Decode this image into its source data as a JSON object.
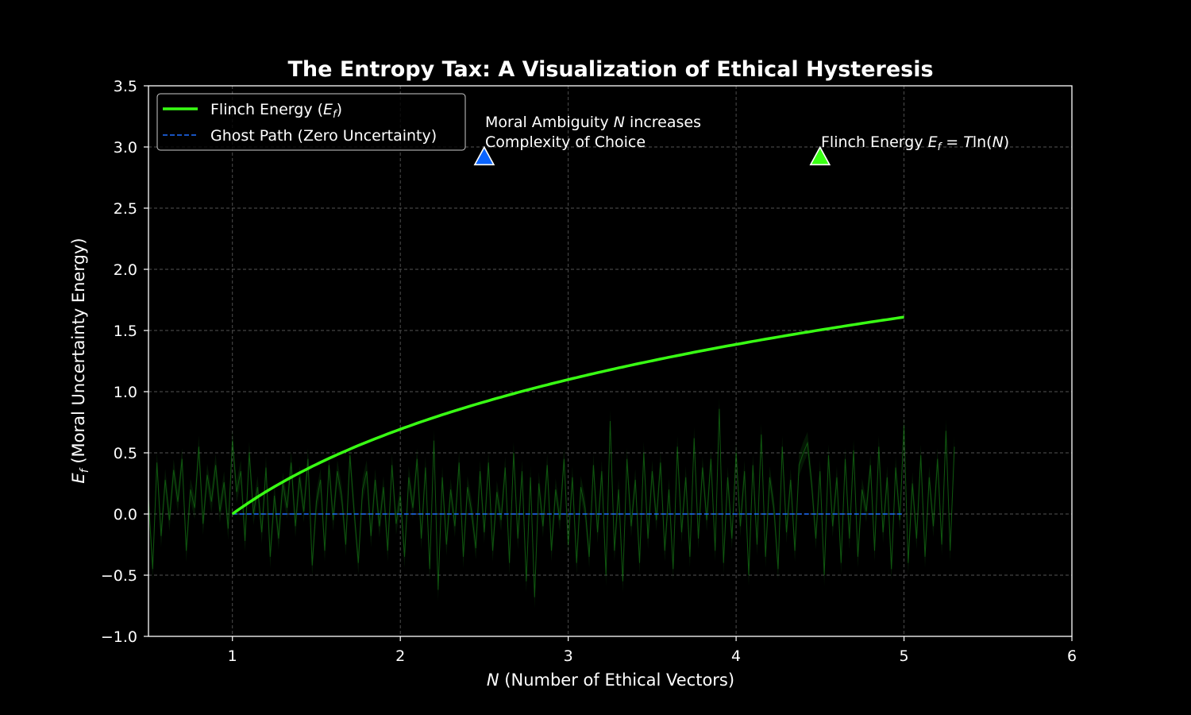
{
  "chart_data": {
    "type": "line",
    "title": "The Entropy Tax: A Visualization of Ethical Hysteresis",
    "xlabel_italic": "N",
    "xlabel_rest": " (Number of Ethical Vectors)",
    "ylabel_italic": "E",
    "ylabel_sub": "f",
    "ylabel_rest": " (Moral Uncertainty Energy)",
    "xlim": [
      0.5,
      6
    ],
    "ylim": [
      -1.0,
      3.5
    ],
    "x_ticks": [
      "1",
      "2",
      "3",
      "4",
      "5",
      "6"
    ],
    "x_tick_values": [
      1,
      2,
      3,
      4,
      5,
      6
    ],
    "y_ticks": [
      "−1.0",
      "−0.5",
      "0.0",
      "0.5",
      "1.0",
      "1.5",
      "2.0",
      "2.5",
      "3.0",
      "3.5"
    ],
    "y_tick_values": [
      -1.0,
      -0.5,
      0.0,
      0.5,
      1.0,
      1.5,
      2.0,
      2.5,
      3.0,
      3.5
    ],
    "grid": true,
    "legend_position": "upper-left",
    "series": [
      {
        "name": "Flinch Energy (Ef)",
        "legend_prefix": "Flinch Energy (",
        "legend_italic": "E",
        "legend_sub": "f",
        "legend_suffix": ")",
        "color": "#39ff14",
        "style": "solid",
        "x": [
          1.0,
          1.25,
          1.5,
          1.75,
          2.0,
          2.25,
          2.5,
          2.75,
          3.0,
          3.25,
          3.5,
          3.75,
          4.0,
          4.25,
          4.5,
          4.75,
          5.0
        ],
        "y": [
          0.0,
          0.223,
          0.405,
          0.56,
          0.693,
          0.811,
          0.916,
          1.012,
          1.099,
          1.179,
          1.253,
          1.322,
          1.386,
          1.447,
          1.504,
          1.558,
          1.609
        ]
      },
      {
        "name": "Ghost Path (Zero Uncertainty)",
        "color": "#1f6fff",
        "style": "dashed",
        "x": [
          1.0,
          5.0
        ],
        "y": [
          0.0,
          0.0
        ]
      }
    ],
    "noise_band": {
      "color": "#1a8c1a",
      "x_start": 0.5,
      "x_step": 0.025,
      "values": [
        0.12,
        -0.45,
        0.42,
        -0.18,
        0.28,
        -0.05,
        0.36,
        0.1,
        0.45,
        -0.3,
        0.2,
        0.05,
        0.55,
        -0.08,
        0.32,
        0.1,
        0.4,
        0.02,
        0.26,
        -0.12,
        0.6,
        0.18,
        0.35,
        -0.22,
        0.5,
        0.0,
        0.22,
        -0.15,
        0.38,
        -0.35,
        0.15,
        -0.2,
        0.25,
        0.05,
        0.42,
        -0.1,
        0.3,
        0.02,
        0.45,
        -0.42,
        0.1,
        0.28,
        -0.3,
        0.4,
        -0.05,
        0.35,
        0.15,
        -0.25,
        0.48,
        0.02,
        -0.4,
        0.2,
        0.35,
        -0.18,
        0.28,
        -0.1,
        0.22,
        -0.3,
        0.4,
        -0.08,
        0.15,
        -0.35,
        0.3,
        0.05,
        0.45,
        -0.2,
        0.38,
        -0.45,
        0.6,
        -0.62,
        0.3,
        -0.25,
        0.2,
        -0.1,
        0.42,
        -0.35,
        0.22,
        0.02,
        -0.28,
        0.35,
        -0.15,
        0.42,
        -0.3,
        0.18,
        -0.05,
        0.38,
        -0.4,
        0.5,
        -0.2,
        0.35,
        -0.55,
        0.3,
        -0.68,
        0.25,
        -0.1,
        0.4,
        -0.3,
        0.2,
        -0.05,
        0.45,
        -0.25,
        0.3,
        -0.4,
        0.22,
        0.05,
        -0.35,
        0.4,
        -0.15,
        0.35,
        -0.5,
        0.76,
        -0.3,
        0.2,
        -0.55,
        0.45,
        -0.1,
        0.28,
        -0.4,
        0.5,
        -0.2,
        0.35,
        -0.05,
        0.42,
        -0.3,
        0.2,
        -0.45,
        0.55,
        -0.15,
        0.3,
        -0.35,
        0.62,
        -0.2,
        0.38,
        -0.05,
        0.45,
        -0.3,
        0.86,
        -0.4,
        0.3,
        -0.2,
        0.5,
        -0.1,
        0.35,
        -0.5,
        0.4,
        -0.25,
        0.65,
        -0.35,
        0.3,
        0.05,
        -0.45,
        0.55,
        -0.15,
        0.28,
        -0.3,
        0.4,
        0.5,
        0.58,
        0.25,
        -0.2,
        0.35,
        -0.5,
        0.48,
        -0.1,
        0.3,
        -0.4,
        0.45,
        -0.2,
        0.52,
        -0.35,
        0.2,
        0.02,
        0.4,
        -0.3,
        0.55,
        -0.15,
        0.3,
        -0.45,
        0.38,
        -0.05,
        0.72,
        -0.4,
        0.25,
        -0.2,
        0.48,
        -0.35,
        0.3,
        -0.1,
        0.45,
        -0.25,
        0.68,
        -0.3,
        0.55
      ]
    },
    "annotations": [
      {
        "name": "moral-ambiguity",
        "marker_color": "#0a64ff",
        "x": 2.5,
        "y": 2.92,
        "line1_prefix": "Moral Ambiguity ",
        "line1_italic": "N",
        "line1_suffix": " increases",
        "line2": "Complexity of Choice"
      },
      {
        "name": "flinch-energy",
        "marker_color": "#39ff14",
        "x": 4.5,
        "y": 2.92,
        "prefix": "Flinch Energy ",
        "italic_e": "E",
        "sub_f": "f",
        "eq": " = ",
        "italic_t": "T",
        "ln": "ln(",
        "italic_n": "N",
        "close": ")"
      }
    ]
  }
}
